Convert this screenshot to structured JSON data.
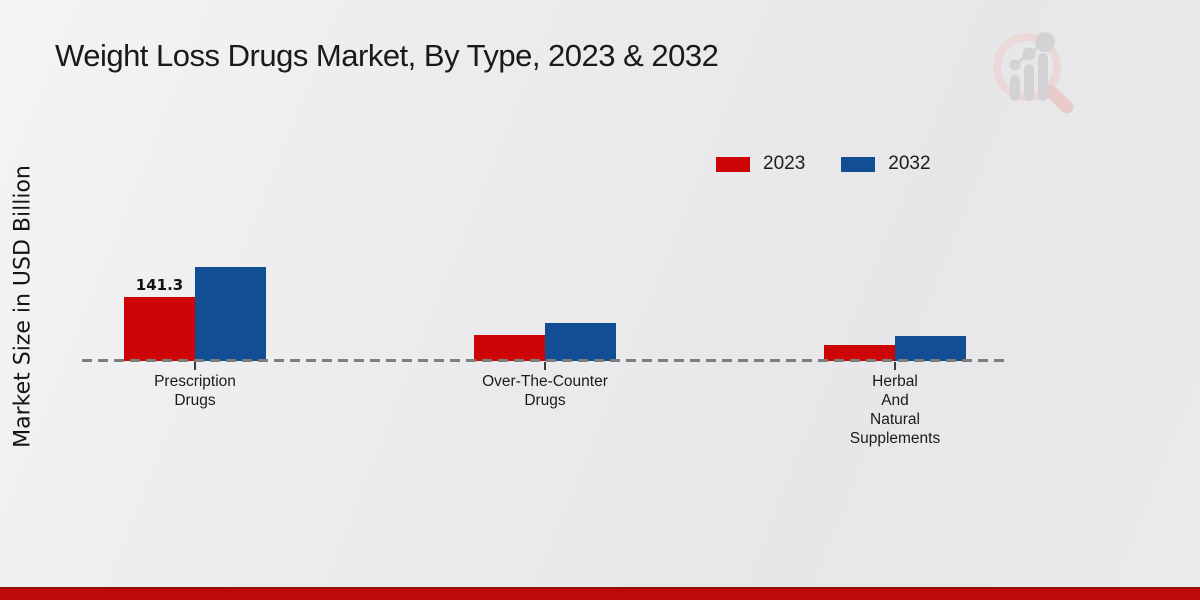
{
  "title": "Weight Loss Drugs Market, By Type, 2023 & 2032",
  "ylabel": "Market Size in USD Billion",
  "accents": {
    "series_2023_color": "#cc0606",
    "series_2032_color": "#114e94",
    "baseline_color": "#7e7e7e",
    "footer_bar_color": "#bf0808",
    "background_color": "#ececee"
  },
  "legend": {
    "position": "top-right",
    "entries": [
      "2023",
      "2032"
    ]
  },
  "chart_data": {
    "type": "bar",
    "title": "Weight Loss Drugs Market, By Type, 2023 & 2032",
    "xlabel": "",
    "ylabel": "Market Size in USD Billion",
    "grid": false,
    "legend_position": "top-right",
    "baseline_style": "dashed",
    "categories": [
      "Prescription Drugs",
      "Over-The-Counter Drugs",
      "Herbal And Natural Supplements"
    ],
    "category_lines": [
      [
        "Prescription",
        "Drugs"
      ],
      [
        "Over-The-Counter",
        "Drugs"
      ],
      [
        "Herbal",
        "And",
        "Natural",
        "Supplements"
      ]
    ],
    "series": [
      {
        "name": "2023",
        "color": "#cc0606",
        "values": [
          141.3,
          57,
          35
        ]
      },
      {
        "name": "2032",
        "color": "#114e94",
        "values": [
          208,
          84,
          55
        ]
      }
    ],
    "value_labels": [
      {
        "series": 0,
        "category": 0,
        "text": "141.3"
      }
    ],
    "ylim": [
      0,
      230
    ]
  }
}
